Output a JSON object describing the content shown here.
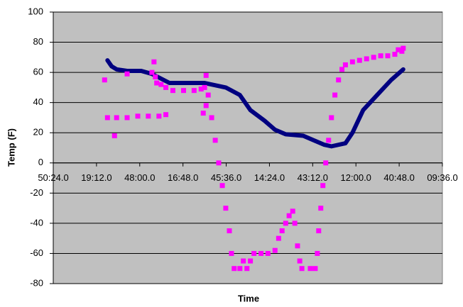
{
  "chart_data": {
    "type": "scatter",
    "xlabel": "Time",
    "ylabel": "Temp (F)",
    "xlim": [
      0,
      259.2
    ],
    "ylim": [
      -80,
      100
    ],
    "xticks": [
      {
        "value": 0,
        "label": "50:24.0"
      },
      {
        "value": 28.8,
        "label": "19:12.0"
      },
      {
        "value": 57.6,
        "label": "48:00.0"
      },
      {
        "value": 86.4,
        "label": "16:48.0"
      },
      {
        "value": 115.2,
        "label": "45:36.0"
      },
      {
        "value": 144,
        "label": "14:24.0"
      },
      {
        "value": 172.8,
        "label": "43:12.0"
      },
      {
        "value": 201.6,
        "label": "12:00.0"
      },
      {
        "value": 230.4,
        "label": "40:48.0"
      },
      {
        "value": 259.2,
        "label": "09:36.0"
      }
    ],
    "yticks": [
      -80,
      -60,
      -40,
      -20,
      0,
      20,
      40,
      60,
      80,
      100
    ],
    "grid": true,
    "series": [
      {
        "color": "#000080",
        "marker": "line",
        "x": [
          36.1,
          38.9,
          42.2,
          49.2,
          58.6,
          65.7,
          77.4,
          89.1,
          100.8,
          105.5,
          114.9,
          124.3,
          131.3,
          140.7,
          147.7,
          154.8,
          166.5,
          173.5,
          180.6,
          185.3,
          194.6,
          199.3,
          206.4,
          215.7,
          225.1,
          233.1
        ],
        "values": [
          68,
          64,
          62,
          61,
          61,
          59,
          53,
          53,
          53,
          52,
          50,
          45,
          35,
          28,
          22,
          19,
          18,
          15,
          12,
          11,
          13,
          20,
          35,
          45,
          55,
          62
        ]
      },
      {
        "color": "#ff00ff",
        "marker": "square",
        "x": [
          34.2,
          36.1,
          42.2,
          49.2,
          56.3,
          63.3,
          70.4,
          75.0,
          40.8,
          49.2,
          65.7,
          67.1,
          68.0,
          68.9,
          71.8,
          75.0,
          79.7,
          86.8,
          93.8,
          98.5,
          100.8,
          101.8,
          99.9,
          101.8,
          103.2,
          105.5,
          107.9,
          110.2,
          112.6,
          114.9,
          117.3,
          118.7,
          120.5,
          124.3,
          129.0,
          126.6,
          131.3,
          133.7,
          138.4,
          143.0,
          147.7,
          150.1,
          152.4,
          154.8,
          157.1,
          159.5,
          160.9,
          162.7,
          164.2,
          165.6,
          171.2,
          174.5,
          175.9,
          176.8,
          178.2,
          179.6,
          181.5,
          183.4,
          185.3,
          187.6,
          190.0,
          192.3,
          194.6,
          199.3,
          204.0,
          208.7,
          213.4,
          218.1,
          222.8,
          227.5,
          229.8,
          232.2,
          233.1
        ],
        "values": [
          55,
          30,
          30,
          30,
          31,
          31,
          31,
          32,
          18,
          59,
          60,
          67,
          57,
          53,
          52,
          50,
          48,
          48,
          48,
          49,
          50,
          58,
          33,
          38,
          45,
          30,
          15,
          0,
          -15,
          -30,
          -45,
          -60,
          -70,
          -70,
          -70,
          -65,
          -65,
          -60,
          -60,
          -60,
          -58,
          -50,
          -45,
          -40,
          -35,
          -32,
          -40,
          -55,
          -65,
          -70,
          -70,
          -70,
          -60,
          -45,
          -30,
          -15,
          0,
          15,
          30,
          45,
          55,
          62,
          65,
          67,
          68,
          69,
          70,
          71,
          71,
          72,
          75,
          74,
          76
        ]
      }
    ]
  }
}
